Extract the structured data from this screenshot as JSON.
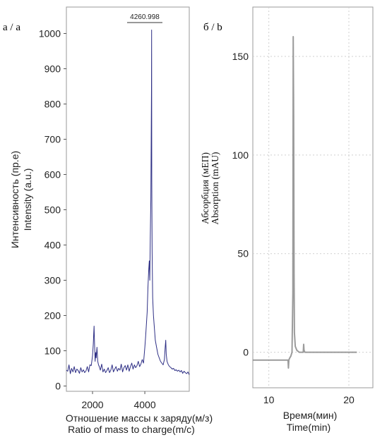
{
  "panels": [
    {
      "label": "a / a",
      "chart_data": {
        "type": "line",
        "xlabel": "Отношение массы к заряду(м/з)",
        "xlabel_en": "Ratio of mass to charge(m/c)",
        "ylabel": "Интенсивность (пр.е)",
        "ylabel_en": "Intensity (a.u.)",
        "xlim": [
          1000,
          5700
        ],
        "ylim": [
          -15,
          1075
        ],
        "x_ticks": [
          2000,
          4000
        ],
        "y_ticks": [
          0,
          100,
          200,
          300,
          400,
          500,
          600,
          700,
          800,
          900,
          1000
        ],
        "grid": false,
        "annotation": "4260.998",
        "series": [
          {
            "color": "#2e2f85",
            "x": [
              1000,
              1050,
              1100,
              1150,
              1200,
              1250,
              1300,
              1350,
              1400,
              1450,
              1500,
              1550,
              1600,
              1650,
              1700,
              1750,
              1800,
              1850,
              1900,
              1950,
              2000,
              2030,
              2060,
              2080,
              2100,
              2120,
              2140,
              2170,
              2200,
              2230,
              2260,
              2300,
              2350,
              2400,
              2450,
              2500,
              2550,
              2600,
              2650,
              2700,
              2750,
              2800,
              2850,
              2900,
              2950,
              3000,
              3050,
              3100,
              3150,
              3200,
              3250,
              3300,
              3350,
              3400,
              3450,
              3500,
              3550,
              3600,
              3650,
              3700,
              3750,
              3800,
              3850,
              3900,
              3950,
              4000,
              4030,
              4060,
              4090,
              4120,
              4150,
              4170,
              4190,
              4210,
              4230,
              4245,
              4255,
              4261,
              4267,
              4280,
              4300,
              4330,
              4360,
              4400,
              4450,
              4500,
              4550,
              4600,
              4650,
              4700,
              4750,
              4780,
              4800,
              4820,
              4850,
              4900,
              4950,
              5000,
              5050,
              5100,
              5150,
              5200,
              5250,
              5300,
              5350,
              5400,
              5450,
              5500,
              5550,
              5600,
              5650,
              5700
            ],
            "y": [
              45,
              42,
              60,
              35,
              50,
              40,
              55,
              38,
              48,
              44,
              36,
              52,
              40,
              46,
              38,
              43,
              55,
              40,
              60,
              58,
              85,
              120,
              170,
              110,
              70,
              95,
              80,
              110,
              70,
              60,
              55,
              45,
              62,
              40,
              48,
              38,
              44,
              52,
              38,
              45,
              60,
              40,
              48,
              55,
              42,
              50,
              45,
              62,
              40,
              52,
              58,
              45,
              60,
              42,
              55,
              65,
              48,
              60,
              52,
              58,
              70,
              55,
              62,
              75,
              65,
              110,
              140,
              175,
              210,
              280,
              330,
              355,
              300,
              420,
              530,
              700,
              840,
              1010,
              590,
              380,
              250,
              200,
              170,
              130,
              110,
              90,
              80,
              70,
              65,
              60,
              75,
              110,
              130,
              90,
              70,
              60,
              55,
              52,
              48,
              50,
              44,
              46,
              42,
              45,
              40,
              44,
              36,
              42,
              38,
              35,
              40,
              32
            ]
          }
        ]
      }
    },
    {
      "label": "б / b",
      "chart_data": {
        "type": "line",
        "xlabel": "Время(мин)",
        "xlabel_en": "Time(min)",
        "ylabel": "Абсорбция (мЕП)",
        "ylabel_en": "Absorption (mAU)",
        "xlim": [
          8.0,
          23.0
        ],
        "ylim": [
          -18,
          175
        ],
        "x_ticks": [
          10,
          20
        ],
        "y_ticks": [
          0,
          50,
          100,
          150
        ],
        "grid": true,
        "series": [
          {
            "color": "#8a8a8a",
            "x": [
              8.0,
              9.0,
              10.0,
              11.0,
              12.0,
              12.4,
              12.45,
              12.5,
              12.6,
              12.75,
              12.9,
              13.0,
              13.05,
              13.1,
              13.15,
              13.2,
              13.3,
              13.5,
              13.8,
              14.0,
              14.3,
              14.35,
              14.4,
              14.5,
              15.0,
              16.0,
              17.0,
              18.0,
              19.0,
              20.0,
              21.0
            ],
            "y": [
              -4,
              -4,
              -4,
              -4,
              -4,
              -4,
              -8,
              -4,
              -3,
              -2,
              0,
              30,
              160,
              120,
              40,
              10,
              3,
              1,
              0,
              0,
              0,
              4,
              1,
              0,
              0,
              0,
              0,
              0,
              0,
              0,
              0
            ]
          }
        ]
      }
    }
  ]
}
